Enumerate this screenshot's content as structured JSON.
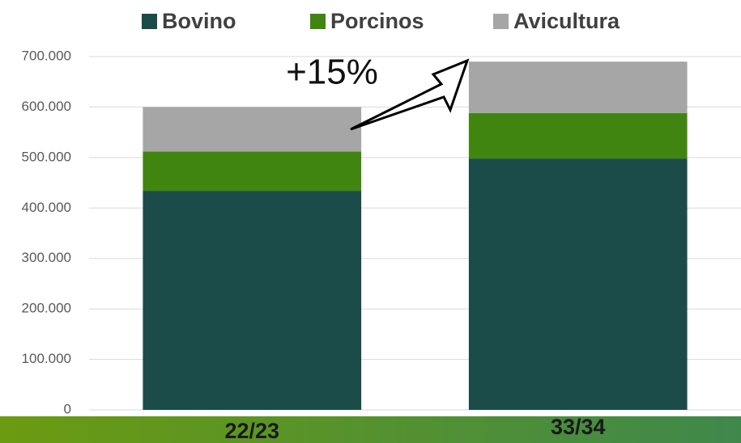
{
  "chart_data": {
    "type": "stacked_bar",
    "categories": [
      "22/23",
      "33/34"
    ],
    "series": [
      {
        "name": "Bovino",
        "color": "#1b4b48",
        "values": [
          434000,
          498000
        ]
      },
      {
        "name": "Porcinos",
        "color": "#418511",
        "values": [
          78000,
          90000
        ]
      },
      {
        "name": "Avicultura",
        "color": "#a6a6a6",
        "values": [
          88000,
          102000
        ]
      }
    ],
    "ylim": [
      0,
      700000
    ],
    "yticks": [
      0,
      {
        "value": 100000,
        "label": "100.000"
      },
      {
        "value": 200000,
        "label": "200.000"
      },
      {
        "value": 300000,
        "label": "300.000"
      },
      {
        "value": 400000,
        "label": "400.000"
      },
      {
        "value": 500000,
        "label": "500.000"
      },
      {
        "value": 600000,
        "label": "600.000"
      },
      {
        "value": 700000,
        "label": "700.000"
      }
    ],
    "grid": true,
    "legend": "top",
    "annotation": "+15%"
  }
}
